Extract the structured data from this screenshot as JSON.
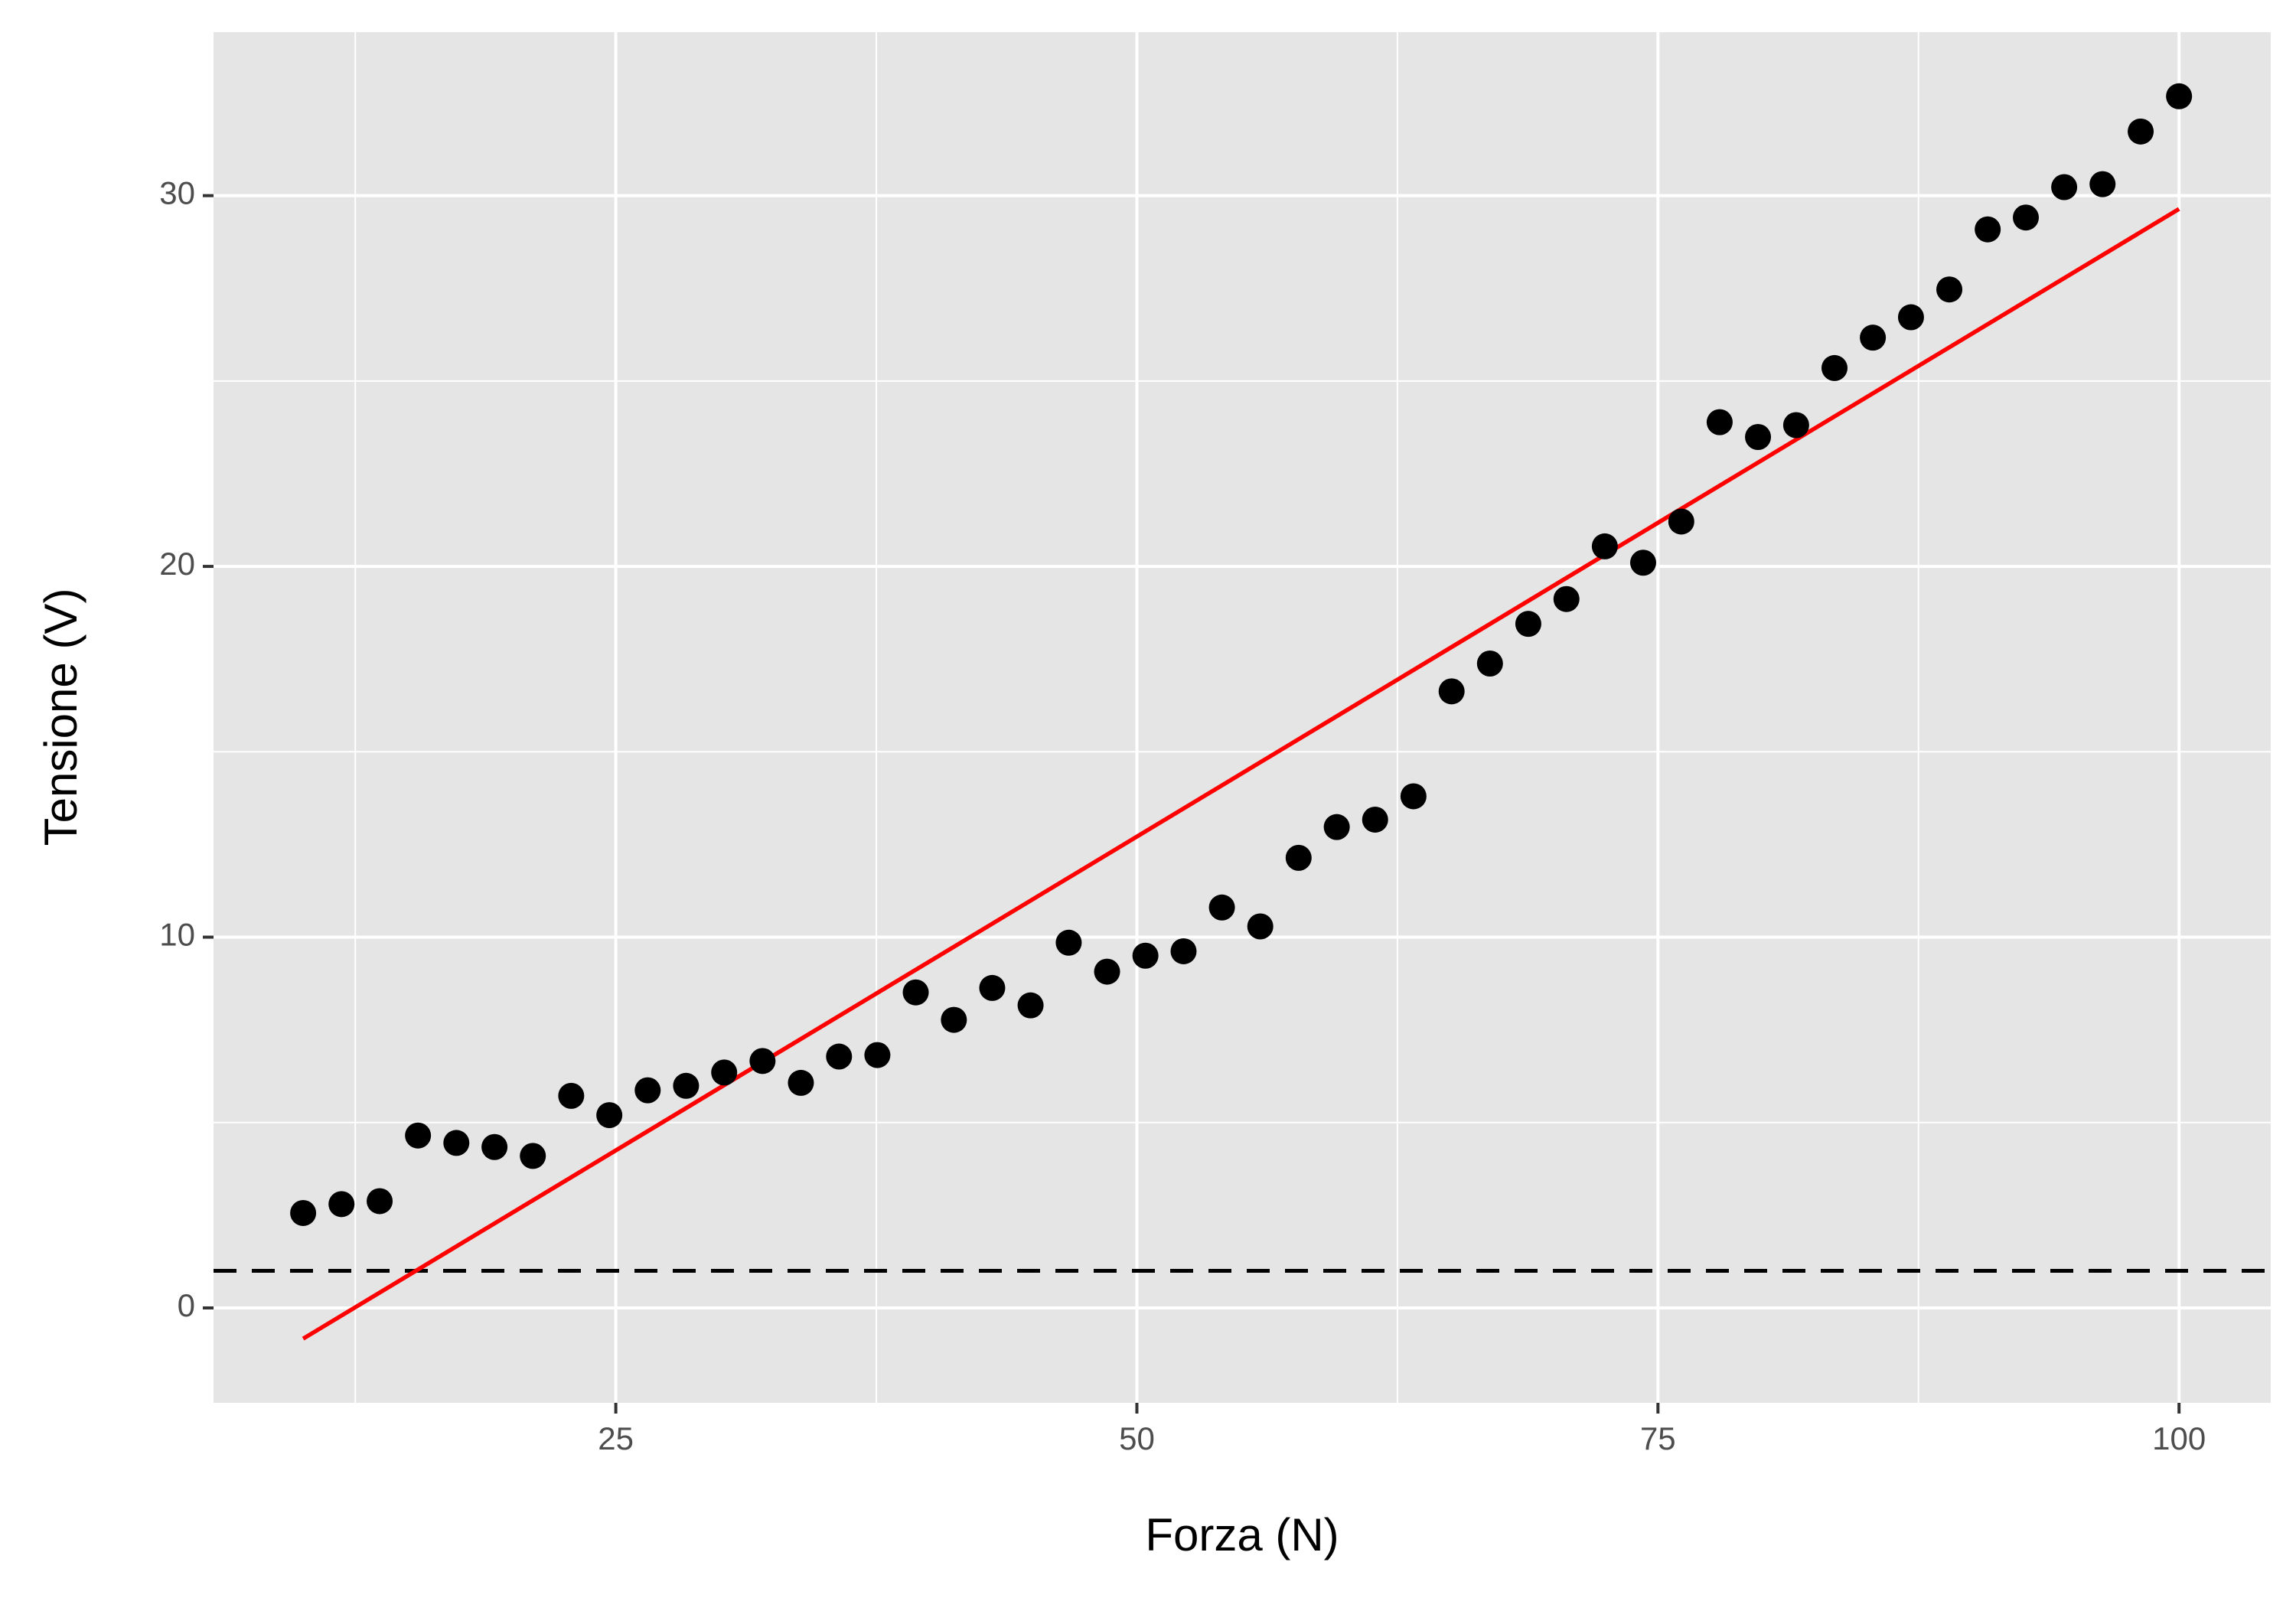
{
  "chart_data": {
    "type": "scatter",
    "xlabel": "Forza (N)",
    "ylabel": "Tensione (V)",
    "x": [
      10,
      11.84,
      13.67,
      15.51,
      17.35,
      19.18,
      21.02,
      22.86,
      24.69,
      26.53,
      28.37,
      30.2,
      32.04,
      33.88,
      35.71,
      37.55,
      39.39,
      41.22,
      43.06,
      44.9,
      46.73,
      48.57,
      50.41,
      52.24,
      54.08,
      55.92,
      57.76,
      59.59,
      61.43,
      63.27,
      65.1,
      66.94,
      68.78,
      70.61,
      72.45,
      74.29,
      76.12,
      77.96,
      79.8,
      81.63,
      83.47,
      85.31,
      87.14,
      88.98,
      90.82,
      92.65,
      94.49,
      96.33,
      98.16,
      100
    ],
    "series": [
      {
        "type": "scatter",
        "color": "#000000",
        "values": [
          2.56,
          2.8,
          2.88,
          4.65,
          4.45,
          4.34,
          4.1,
          5.72,
          5.2,
          5.87,
          5.99,
          6.35,
          6.66,
          6.07,
          6.78,
          6.82,
          8.51,
          7.77,
          8.63,
          8.16,
          9.85,
          9.07,
          9.5,
          9.62,
          10.8,
          10.29,
          12.14,
          12.97,
          13.17,
          13.8,
          16.63,
          17.38,
          18.45,
          19.12,
          20.54,
          20.1,
          21.21,
          23.89,
          23.49,
          23.81,
          25.35,
          26.17,
          26.72,
          27.47,
          29.09,
          29.41,
          30.23,
          30.31,
          31.73,
          32.68
        ]
      },
      {
        "type": "line",
        "color": "#ff0000",
        "x": [
          10,
          100
        ],
        "values": [
          -0.83,
          29.64
        ]
      }
    ],
    "hline": 1,
    "hline_style": "dashed",
    "hline_color": "#000000",
    "xlim": [
      5.7,
      104.4
    ],
    "xticks": [
      25,
      50,
      75,
      100
    ],
    "xminor": [
      12.5,
      37.5,
      62.5,
      87.5
    ],
    "ylim": [
      -2.56,
      34.41
    ],
    "yticks": [
      0,
      10,
      20,
      30
    ],
    "yminor": [
      5,
      15,
      25
    ],
    "grid": true,
    "panel_color": "#e5e5e5"
  }
}
